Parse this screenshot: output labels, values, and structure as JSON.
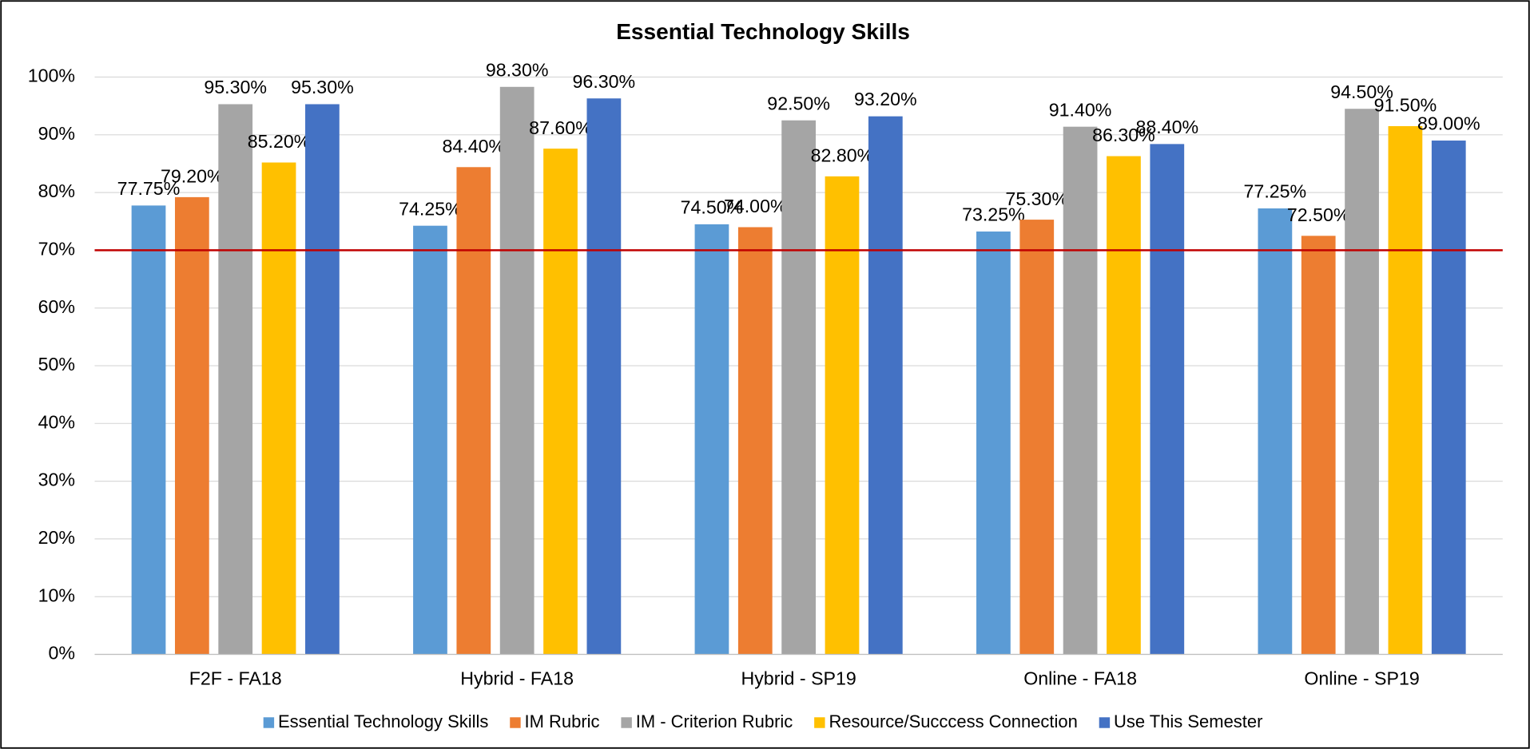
{
  "chart_data": {
    "type": "bar",
    "title": "Essential Technology Skills",
    "categories": [
      "F2F - FA18",
      "Hybrid - FA18",
      "Hybrid - SP19",
      "Online - FA18",
      "Online - SP19"
    ],
    "series": [
      {
        "name": "Essential Technology Skills",
        "color": "#5b9bd5",
        "values": [
          77.75,
          74.25,
          74.5,
          73.25,
          77.25
        ],
        "value_labels": [
          "77.75%",
          "74.25%",
          "74.50%",
          "73.25%",
          "77.25%"
        ]
      },
      {
        "name": "IM Rubric",
        "color": "#ed7d31",
        "values": [
          79.2,
          84.4,
          74.0,
          75.3,
          72.5
        ],
        "value_labels": [
          "79.20%",
          "84.40%",
          "74.00%",
          "75.30%",
          "72.50%"
        ]
      },
      {
        "name": "IM - Criterion Rubric",
        "color": "#a5a5a5",
        "values": [
          95.3,
          98.3,
          92.5,
          91.4,
          94.5
        ],
        "value_labels": [
          "95.30%",
          "98.30%",
          "92.50%",
          "91.40%",
          "94.50%"
        ]
      },
      {
        "name": "Resource/Succcess Connection",
        "color": "#ffc000",
        "values": [
          85.2,
          87.6,
          82.8,
          86.3,
          91.5
        ],
        "value_labels": [
          "85.20%",
          "87.60%",
          "82.80%",
          "86.30%",
          "91.50%"
        ]
      },
      {
        "name": "Use This Semester",
        "color": "#4472c4",
        "values": [
          95.3,
          96.3,
          93.2,
          88.4,
          89.0
        ],
        "value_labels": [
          "95.30%",
          "96.30%",
          "93.20%",
          "88.40%",
          "89.00%"
        ]
      }
    ],
    "ylim": [
      0,
      100
    ],
    "yticks": [
      {
        "value": 0,
        "label": "0%"
      },
      {
        "value": 10,
        "label": "10%"
      },
      {
        "value": 20,
        "label": "20%"
      },
      {
        "value": 30,
        "label": "30%"
      },
      {
        "value": 40,
        "label": "40%"
      },
      {
        "value": 50,
        "label": "50%"
      },
      {
        "value": 60,
        "label": "60%"
      },
      {
        "value": 70,
        "label": "70%"
      },
      {
        "value": 80,
        "label": "80%"
      },
      {
        "value": 90,
        "label": "90%"
      },
      {
        "value": 100,
        "label": "100%"
      }
    ],
    "grid": true,
    "threshold": {
      "value": 70,
      "color": "#c00000"
    },
    "legend": "bottom"
  }
}
